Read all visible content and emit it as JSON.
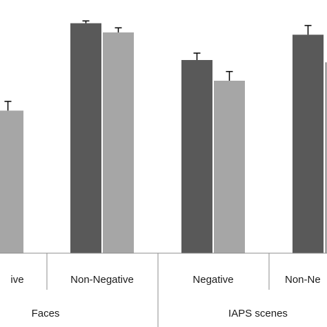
{
  "chart_data": {
    "type": "bar",
    "group_labels": [
      "Faces",
      "IAPS scenes"
    ],
    "categories": [
      "Negative",
      "Non-Negative",
      "Negative",
      "Non-Negative"
    ],
    "category_display": [
      "ive",
      "Non-Negative",
      "Negative",
      "Non-Ne"
    ],
    "series": [
      {
        "values": [
          null,
          100,
          84,
          95
        ],
        "errors": [
          null,
          1,
          3,
          4
        ],
        "color": "#595959"
      },
      {
        "values": [
          62,
          96,
          75,
          83
        ],
        "errors": [
          4,
          2,
          4,
          4
        ],
        "color": "#a6a6a6"
      }
    ],
    "ylim": [
      0,
      105
    ],
    "grid": false
  }
}
